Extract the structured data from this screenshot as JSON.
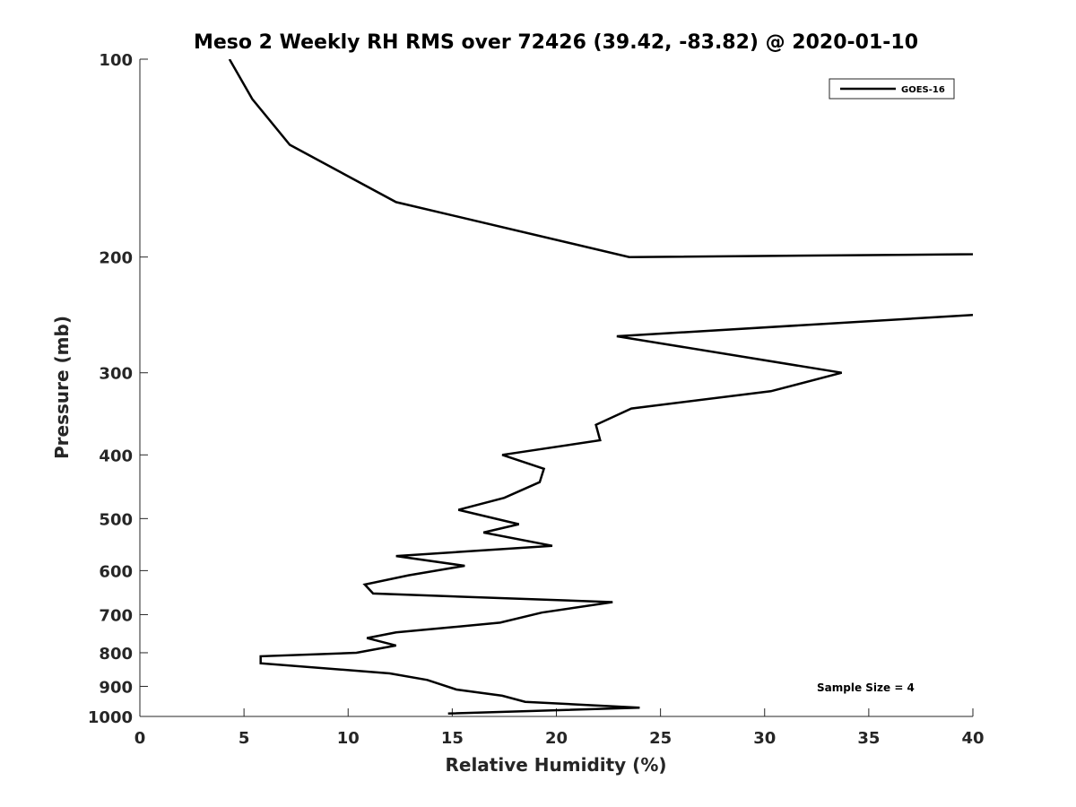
{
  "chart_data": {
    "type": "line",
    "title": "Meso 2 Weekly RH RMS over 72426 (39.42, -83.82) @ 2020-01-10",
    "xlabel": "Relative Humidity (%)",
    "ylabel": "Pressure (mb)",
    "xlim": [
      0,
      40
    ],
    "ylim": [
      100,
      1000
    ],
    "yscale": "log",
    "y_reversed": true,
    "x_ticks": [
      0,
      5,
      10,
      15,
      20,
      25,
      30,
      35,
      40
    ],
    "y_ticks": [
      100,
      200,
      300,
      400,
      500,
      600,
      700,
      800,
      900,
      1000
    ],
    "grid": false,
    "legend_position": "top-right",
    "annotation": "Sample Size = 4",
    "series": [
      {
        "name": "GOES-16",
        "color": "#000000",
        "x": [
          4.3,
          5.4,
          7.2,
          12.3,
          23.5,
          40.0,
          42.0,
          42.0,
          40.0,
          22.9,
          33.7,
          30.3,
          23.6,
          21.9,
          22.1,
          17.4,
          19.4,
          19.2,
          17.5,
          15.3,
          18.2,
          16.5,
          19.8,
          12.3,
          15.6,
          12.9,
          10.8,
          11.2,
          22.7,
          19.3,
          17.3,
          12.3,
          10.9,
          12.3,
          10.4,
          5.8,
          5.8,
          12.0,
          13.8,
          15.2,
          17.4,
          18.5,
          24.0,
          14.8
        ],
        "y": [
          100,
          115,
          135,
          165,
          200,
          198,
          195,
          250,
          245,
          264,
          300,
          320,
          340,
          360,
          380,
          400,
          420,
          440,
          465,
          485,
          510,
          525,
          550,
          570,
          590,
          610,
          630,
          650,
          670,
          695,
          720,
          745,
          760,
          780,
          800,
          810,
          830,
          860,
          880,
          910,
          930,
          950,
          970,
          990
        ]
      }
    ]
  }
}
